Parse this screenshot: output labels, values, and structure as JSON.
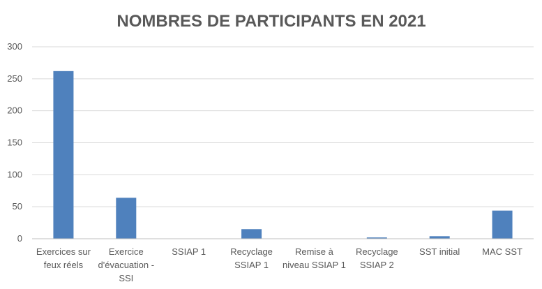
{
  "chart_data": {
    "type": "bar",
    "title": "NOMBRES DE PARTICIPANTS EN 2021",
    "xlabel": "",
    "ylabel": "",
    "categories": [
      [
        "Exercices sur",
        "feux réels"
      ],
      [
        "Exercice",
        "d'évacuation -",
        "SSI"
      ],
      [
        "SSIAP 1"
      ],
      [
        "Recyclage",
        "SSIAP 1"
      ],
      [
        "Remise à",
        "niveau SSIAP 1"
      ],
      [
        "Recyclage",
        "SSIAP 2"
      ],
      [
        "SST initial"
      ],
      [
        "MAC SST"
      ]
    ],
    "values": [
      262,
      64,
      0,
      15,
      0,
      2,
      4,
      44
    ],
    "ylim": [
      0,
      300
    ],
    "yticks": [
      0,
      50,
      100,
      150,
      200,
      250,
      300
    ],
    "grid": true,
    "legend": "none",
    "bar_color": "#4f81bd"
  }
}
